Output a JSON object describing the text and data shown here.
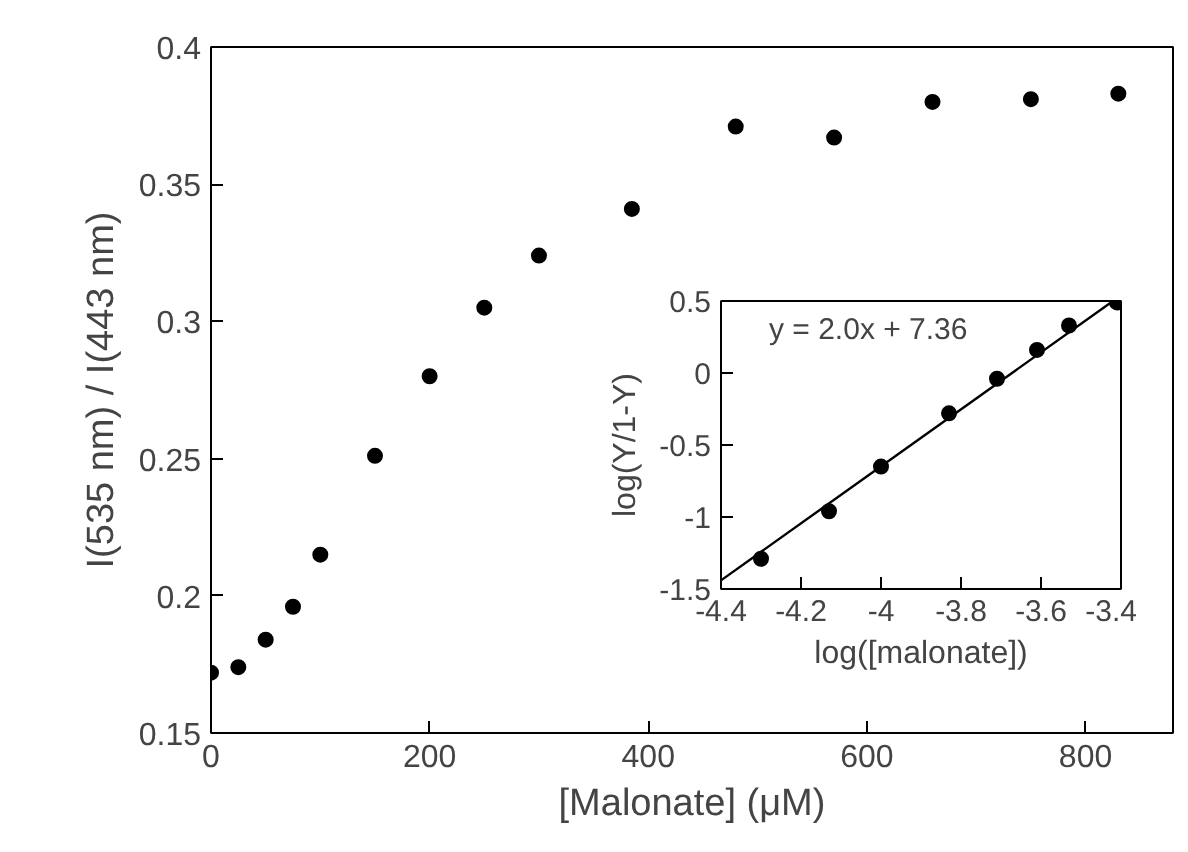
{
  "chart_data": [
    {
      "type": "scatter",
      "xlabel": "[Malonate] (μM)",
      "ylabel": "I(535 nm) / I(443 nm)",
      "x": [
        0,
        25,
        50,
        75,
        100,
        150,
        200,
        250,
        300,
        385,
        480,
        570,
        660,
        750,
        830
      ],
      "values": [
        0.172,
        0.174,
        0.184,
        0.196,
        0.215,
        0.251,
        0.28,
        0.305,
        0.324,
        0.341,
        0.371,
        0.367,
        0.38,
        0.381,
        0.383
      ],
      "color": "#000000",
      "marker": "circle",
      "xlim": [
        0,
        880
      ],
      "xticks": [
        0,
        200,
        400,
        600,
        800
      ],
      "ylim": [
        0.15,
        0.4
      ],
      "yticks": [
        0.15,
        0.2,
        0.25,
        0.3,
        0.35,
        0.4
      ],
      "grid": false
    },
    {
      "type": "scatter",
      "xlabel": "log([malonate])",
      "ylabel": "log(Y/1-Y)",
      "annotations": [
        "y = 2.0x + 7.36"
      ],
      "series": [
        {
          "type": "scatter",
          "marker": "circle",
          "color": "#000000",
          "x": [
            -4.3,
            -4.13,
            -4.0,
            -3.83,
            -3.71,
            -3.61,
            -3.53,
            -3.41
          ],
          "values": [
            -1.29,
            -0.96,
            -0.65,
            -0.28,
            -0.04,
            0.16,
            0.33,
            0.49
          ]
        },
        {
          "type": "line",
          "line_style": "solid",
          "color": "#000000",
          "x": [
            -4.4,
            -3.42
          ],
          "values": [
            -1.44,
            0.5
          ]
        }
      ],
      "xlim": [
        -4.4,
        -3.4
      ],
      "xticks": [
        -4.4,
        -4.2,
        -4,
        -3.8,
        -3.6,
        -3.4
      ],
      "ylim": [
        -1.5,
        0.5
      ],
      "yticks": [
        -1.5,
        -1,
        -0.5,
        0,
        0.5
      ],
      "grid": false
    }
  ]
}
